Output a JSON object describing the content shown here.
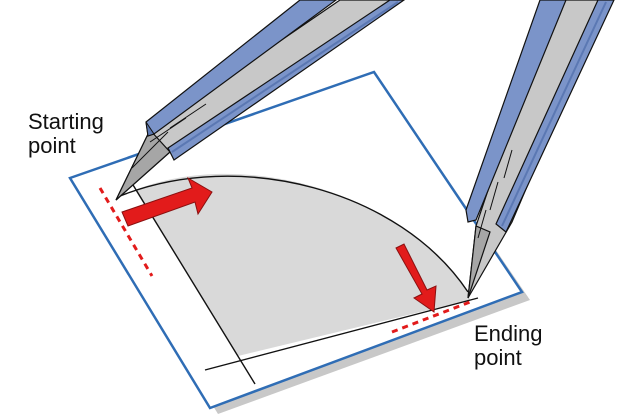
{
  "labels": {
    "start_line1": "Starting",
    "start_line2": "point",
    "end_line1": "Ending",
    "end_line2": "point"
  },
  "colors": {
    "sheet_border": "#2f6db5",
    "sheet_fill": "#ffffff",
    "sheet_shadow": "#c8c8c8",
    "cut_region": "#d9d9d9",
    "blade_blue": "#7b94c9",
    "blade_blue_dark": "#5b78b3",
    "blade_grey": "#c8c8c8",
    "blade_grey_dark": "#a6a6a6",
    "arrow": "#e21b1b",
    "dashed_marker": "#e21b1b",
    "text": "#111111"
  }
}
